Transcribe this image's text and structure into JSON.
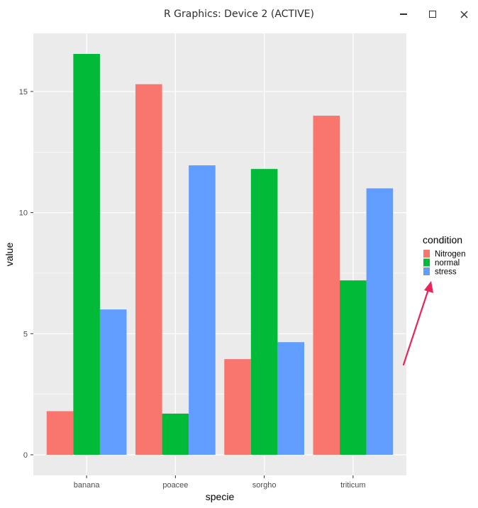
{
  "window": {
    "title": "R Graphics: Device 2 (ACTIVE)",
    "buttons": [
      {
        "name": "minimize",
        "icon": "minimize-icon"
      },
      {
        "name": "maximize",
        "icon": "maximize-icon"
      },
      {
        "name": "close",
        "icon": "close-icon"
      }
    ]
  },
  "chart_data": {
    "type": "bar",
    "categories": [
      "banana",
      "poacee",
      "sorgho",
      "triticum"
    ],
    "series": [
      {
        "name": "Nitrogen",
        "color": "#F8766D",
        "values": [
          1.8,
          15.3,
          3.95,
          14.0
        ]
      },
      {
        "name": "normal",
        "color": "#00BA38",
        "values": [
          16.55,
          1.7,
          11.8,
          7.2
        ]
      },
      {
        "name": "stress",
        "color": "#619CFF",
        "values": [
          6.0,
          11.95,
          4.65,
          11.0
        ]
      }
    ],
    "xlabel": "specie",
    "ylabel": "value",
    "ylim": [
      -0.85,
      17.4
    ],
    "yticks": [
      0,
      5,
      10,
      15
    ],
    "grid": true,
    "legend": {
      "title": "condition",
      "position": "right"
    },
    "annotation": {
      "type": "arrow",
      "color": "#E8245A",
      "target": "legend"
    }
  }
}
